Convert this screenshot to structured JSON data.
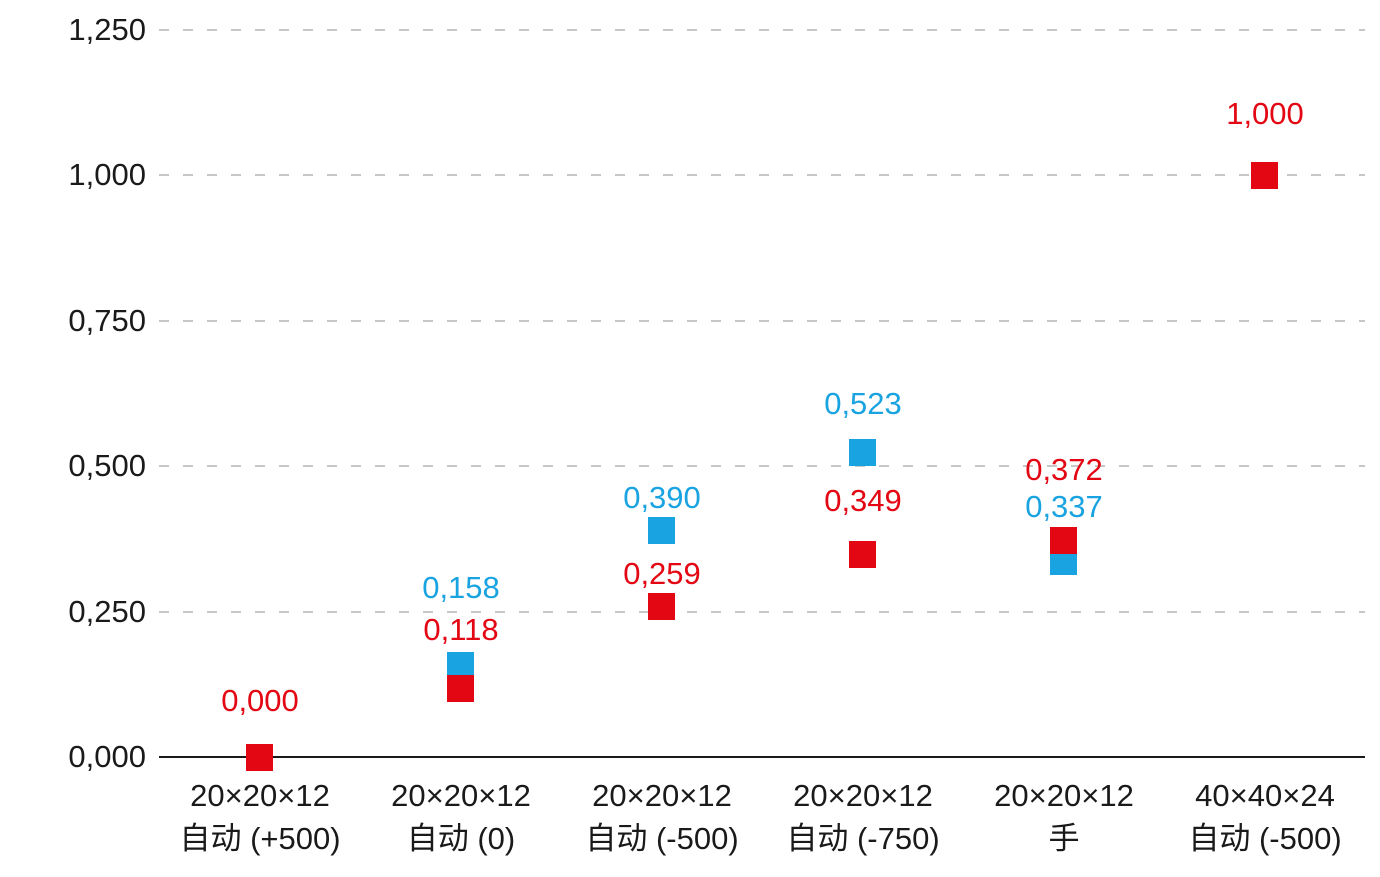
{
  "chart_data": {
    "type": "scatter",
    "title": "",
    "marker_shape": "square",
    "background_color": "#ffffff",
    "grid": {
      "orientation": "horizontal",
      "style": "dashed",
      "color": "#c7c7c7"
    },
    "axis_color": "#1a1a1a",
    "text_color": "#1a1a1a",
    "legend": "none",
    "ylim": [
      0,
      1.25
    ],
    "y_ticks": [
      {
        "value": 0.0,
        "label": "0,000"
      },
      {
        "value": 0.25,
        "label": "0,250"
      },
      {
        "value": 0.5,
        "label": "0,500"
      },
      {
        "value": 0.75,
        "label": "0,750"
      },
      {
        "value": 1.0,
        "label": "1,000"
      },
      {
        "value": 1.25,
        "label": "1,250"
      }
    ],
    "categories": [
      {
        "line1": "20×20×12",
        "line2": "自动 (+500)"
      },
      {
        "line1": "20×20×12",
        "line2": "自动 (0)"
      },
      {
        "line1": "20×20×12",
        "line2": "自动 (-500)"
      },
      {
        "line1": "20×20×12",
        "line2": "自动 (-750)"
      },
      {
        "line1": "20×20×12",
        "line2": "手"
      },
      {
        "line1": "40×40×24",
        "line2": "自动 (-500)"
      }
    ],
    "series": [
      {
        "name": "blue-series",
        "color": "#19a3e1",
        "points": [
          {
            "category_index": 1,
            "value": 0.158,
            "label": "0,158",
            "label_offset_y": -77
          },
          {
            "category_index": 2,
            "value": 0.39,
            "label": "0,390",
            "label_offset_y": -32
          },
          {
            "category_index": 3,
            "value": 0.523,
            "label": "0,523",
            "label_offset_y": -49
          },
          {
            "category_index": 4,
            "value": 0.337,
            "label": "0,337",
            "label_offset_y": -54
          }
        ]
      },
      {
        "name": "red-series",
        "color": "#e30613",
        "points": [
          {
            "category_index": 0,
            "value": 0.0,
            "label": "0,000",
            "label_offset_y": -56
          },
          {
            "category_index": 1,
            "value": 0.118,
            "label": "0,118",
            "label_offset_y": -58
          },
          {
            "category_index": 2,
            "value": 0.259,
            "label": "0,259",
            "label_offset_y": -32
          },
          {
            "category_index": 3,
            "value": 0.349,
            "label": "0,349",
            "label_offset_y": -53
          },
          {
            "category_index": 4,
            "value": 0.372,
            "label": "0,372",
            "label_offset_y": -71
          },
          {
            "category_index": 5,
            "value": 1.0,
            "label": "1,000",
            "label_offset_y": -61
          }
        ]
      }
    ]
  }
}
